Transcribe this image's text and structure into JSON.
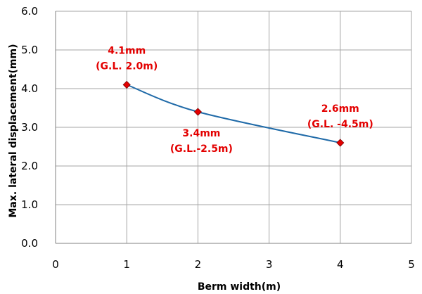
{
  "chart_data": {
    "type": "line",
    "title": "",
    "xlabel": "Berm width(m)",
    "ylabel": "Max. lateral displacement(mm)",
    "xlim": [
      0,
      5
    ],
    "ylim": [
      0,
      6
    ],
    "x_ticks": [
      "0",
      "1",
      "2",
      "3",
      "4",
      "5"
    ],
    "y_ticks": [
      "0.0",
      "1.0",
      "2.0",
      "3.0",
      "4.0",
      "5.0",
      "6.0"
    ],
    "grid": true,
    "legend": "none",
    "series": [
      {
        "x": [
          1,
          2,
          4
        ],
        "values": [
          4.1,
          3.4,
          2.6
        ],
        "line_color": "#1f6aa8",
        "marker_color": "#e30000",
        "marker": "diamond"
      }
    ],
    "annotations": [
      {
        "lines": [
          "4.1mm",
          "(G.L. 2.0m)"
        ],
        "x": 1,
        "y": 4.1,
        "placement": "above"
      },
      {
        "lines": [
          "3.4mm",
          "(G.L.-2.5m)"
        ],
        "x": 2,
        "y": 3.4,
        "placement": "below-right"
      },
      {
        "lines": [
          "2.6mm",
          "(G.L. -4.5m)"
        ],
        "x": 4,
        "y": 2.6,
        "placement": "above"
      }
    ],
    "annotation_color": "#e30000",
    "grid_color": "#a6a6a6"
  }
}
